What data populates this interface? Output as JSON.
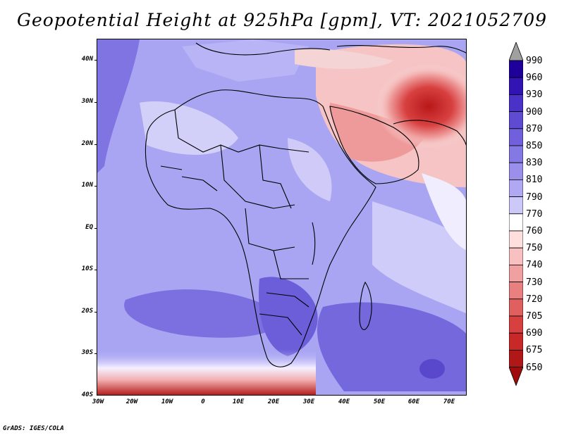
{
  "title": "Geopotential Height at 925hPa [gpm], VT: 2021052709",
  "credit": "GrADS: IGES/COLA",
  "y_axis_labels": [
    "40N",
    "30N",
    "20N",
    "10N",
    "EQ",
    "10S",
    "20S",
    "30S",
    "40S"
  ],
  "x_axis_labels": [
    "30W",
    "20W",
    "10W",
    "0",
    "10E",
    "20E",
    "30E",
    "40E",
    "50E",
    "60E",
    "70E"
  ],
  "colorbar": {
    "labels": [
      "990",
      "960",
      "930",
      "900",
      "870",
      "850",
      "830",
      "810",
      "790",
      "770",
      "760",
      "750",
      "740",
      "730",
      "720",
      "705",
      "690",
      "675",
      "650"
    ],
    "colors": [
      "#a0a0a0",
      "#20009a",
      "#3214b4",
      "#4a32c8",
      "#5f4ad2",
      "#7060dc",
      "#8478e4",
      "#9a90ec",
      "#b0a8f2",
      "#ccc8f8",
      "#ffffff",
      "#ffdede",
      "#f8c0c0",
      "#f0a0a0",
      "#e88080",
      "#e06060",
      "#d84040",
      "#c82828",
      "#b01818",
      "#a00c0c"
    ]
  },
  "colors": {
    "background_field": "#a9a5f2",
    "dark_low": "#6a5cd8",
    "warm": "#e06060",
    "hot": "#b82020"
  }
}
